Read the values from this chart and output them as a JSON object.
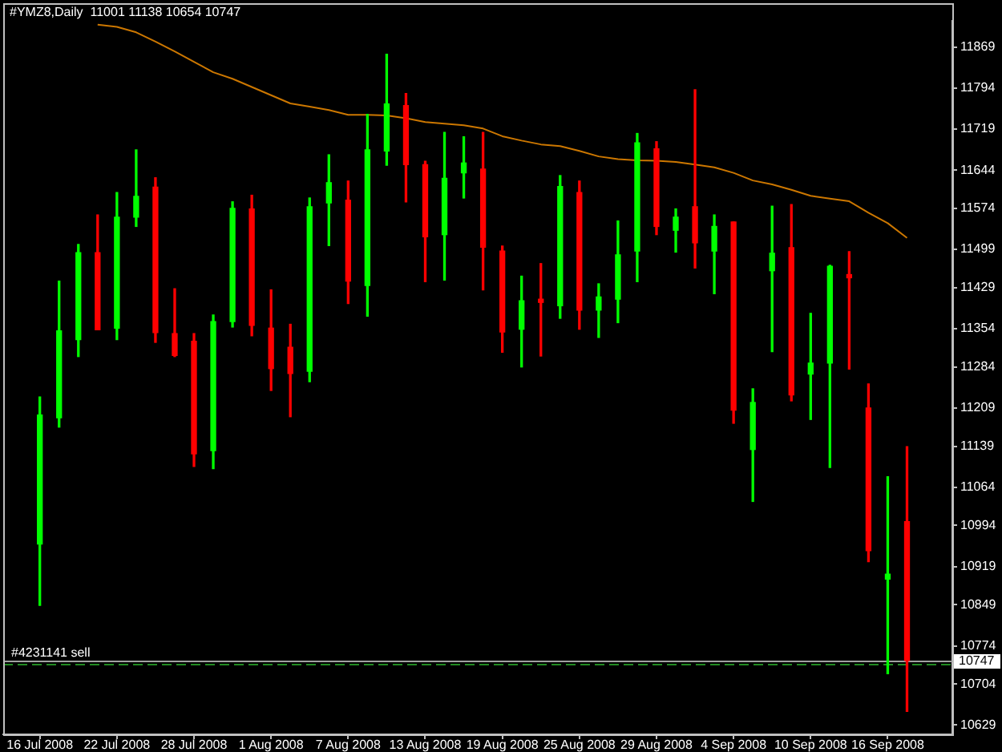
{
  "chart_data": {
    "type": "candlestick",
    "title": "#YMZ8,Daily  11001 11138 10654 10747",
    "categories": [
      "16 Jul 2008",
      null,
      null,
      null,
      "22 Jul 2008",
      null,
      null,
      null,
      "28 Jul 2008",
      null,
      null,
      null,
      "1 Aug 2008",
      null,
      null,
      null,
      "7 Aug 2008",
      null,
      null,
      null,
      "13 Aug 2008",
      null,
      null,
      null,
      "19 Aug 2008",
      null,
      null,
      null,
      "25 Aug 2008",
      null,
      null,
      null,
      "29 Aug 2008",
      null,
      null,
      null,
      "4 Sep 2008",
      null,
      null,
      null,
      "10 Sep 2008",
      null,
      null,
      null,
      "16 Sep 2008",
      null
    ],
    "ohlc": [
      [
        10960,
        11229,
        10848,
        11196
      ],
      [
        11191,
        11441,
        11174,
        11350
      ],
      [
        11334,
        11508,
        11303,
        11493
      ],
      [
        11493,
        11562,
        11352,
        11352
      ],
      [
        11355,
        11603,
        11334,
        11558
      ],
      [
        11558,
        11681,
        11541,
        11596
      ],
      [
        11613,
        11630,
        11329,
        11347
      ],
      [
        11345,
        11427,
        11303,
        11305
      ],
      [
        11331,
        11345,
        11102,
        11125
      ],
      [
        11131,
        11379,
        11098,
        11367
      ],
      [
        11367,
        11586,
        11357,
        11574
      ],
      [
        11573,
        11598,
        11341,
        11360
      ],
      [
        11355,
        11425,
        11241,
        11281
      ],
      [
        11320,
        11362,
        11193,
        11272
      ],
      [
        11276,
        11593,
        11257,
        11577
      ],
      [
        11584,
        11672,
        11506,
        11621
      ],
      [
        11589,
        11624,
        11400,
        11441
      ],
      [
        11433,
        11746,
        11377,
        11681
      ],
      [
        11679,
        11856,
        11653,
        11765
      ],
      [
        11762,
        11784,
        11586,
        11654
      ],
      [
        11654,
        11660,
        11440,
        11522
      ],
      [
        11526,
        11713,
        11443,
        11629
      ],
      [
        11639,
        11705,
        11593,
        11657
      ],
      [
        11646,
        11713,
        11425,
        11503
      ],
      [
        11496,
        11505,
        11311,
        11348
      ],
      [
        11353,
        11450,
        11284,
        11405
      ],
      [
        11405,
        11473,
        11304,
        11405
      ],
      [
        11396,
        11634,
        11373,
        11614
      ],
      [
        11603,
        11624,
        11353,
        11388
      ],
      [
        11388,
        11436,
        11338,
        11412
      ],
      [
        11408,
        11551,
        11365,
        11489
      ],
      [
        11496,
        11711,
        11440,
        11694
      ],
      [
        11683,
        11696,
        11526,
        11541
      ],
      [
        11534,
        11573,
        11494,
        11558
      ],
      [
        11577,
        11791,
        11465,
        11511
      ],
      [
        11496,
        11562,
        11418,
        11541
      ],
      [
        11549,
        11549,
        11181,
        11205
      ],
      [
        11133,
        11244,
        11038,
        11219
      ],
      [
        11460,
        11578,
        11312,
        11492
      ],
      [
        11502,
        11581,
        11222,
        11233
      ],
      [
        11271,
        11382,
        11188,
        11291
      ],
      [
        11291,
        11470,
        11100,
        11468
      ],
      [
        11450,
        11495,
        11280,
        11450
      ],
      [
        11209,
        11253,
        10928,
        10948
      ],
      [
        10896,
        11083,
        10723,
        10905
      ],
      [
        11001,
        11138,
        10654,
        10747
      ]
    ],
    "colors": [
      "#00ff00",
      "#00ff00",
      "#00ff00",
      "#ff0000",
      "#00ff00",
      "#00ff00",
      "#ff0000",
      "#ff0000",
      "#ff0000",
      "#00ff00",
      "#00ff00",
      "#ff0000",
      "#ff0000",
      "#ff0000",
      "#00ff00",
      "#00ff00",
      "#ff0000",
      "#00ff00",
      "#00ff00",
      "#ff0000",
      "#ff0000",
      "#00ff00",
      "#00ff00",
      "#ff0000",
      "#ff0000",
      "#00ff00",
      "#ff0000",
      "#00ff00",
      "#ff0000",
      "#00ff00",
      "#00ff00",
      "#00ff00",
      "#ff0000",
      "#00ff00",
      "#ff0000",
      "#00ff00",
      "#ff0000",
      "#00ff00",
      "#00ff00",
      "#ff0000",
      "#00ff00",
      "#00ff00",
      "#ff0000",
      "#ff0000",
      "#00ff00",
      "#ff0000"
    ],
    "series": [
      {
        "type": "line",
        "color": "#cc7700",
        "values": [
          null,
          null,
          null,
          11910,
          11906,
          11896,
          11879,
          11861,
          11842,
          11823,
          11811,
          11796,
          11781,
          11766,
          11760,
          11754,
          11745,
          11745,
          11744,
          11739,
          11732,
          11729,
          11726,
          11720,
          11706,
          11698,
          11691,
          11688,
          11679,
          11669,
          11664,
          11662,
          11661,
          11659,
          11654,
          11649,
          11639,
          11625,
          11618,
          11608,
          11597,
          11592,
          11587,
          11566,
          11547,
          11520
        ]
      }
    ],
    "ylim": [
      10612,
      11917
    ],
    "yticks": [
      11869,
      11794,
      11719,
      11644,
      11574,
      11499,
      11429,
      11354,
      11284,
      11209,
      11139,
      11064,
      10994,
      10919,
      10849,
      10774,
      10704,
      10629
    ],
    "ref_lines": [
      {
        "axis": "y",
        "value": 10747,
        "label": "10747",
        "color": "#a0a0a0",
        "line_style": "solid"
      },
      {
        "axis": "y",
        "value": 10742,
        "label": "#4231141 sell",
        "color": "#228b22",
        "line_style": "dashed"
      }
    ]
  }
}
